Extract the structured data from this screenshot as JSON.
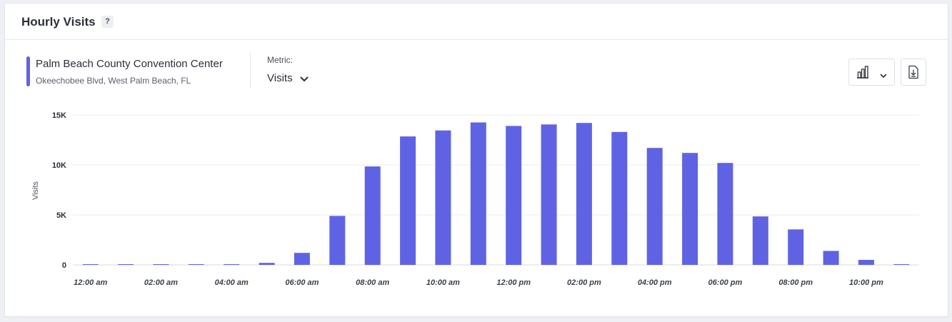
{
  "card": {
    "title": "Hourly Visits",
    "help": "?"
  },
  "venue": {
    "name": "Palm Beach County Convention Center",
    "address": "Okeechobee Blvd, West Palm Beach, FL",
    "color": "#5f63e3"
  },
  "metric": {
    "label": "Metric:",
    "value": "Visits"
  },
  "toolbar": {
    "chart_type_icon": "bar-chart-icon",
    "download_icon": "download-file-icon"
  },
  "chart_data": {
    "type": "bar",
    "ylabel": "Visits",
    "ylim": [
      0,
      15000
    ],
    "yticks": [
      0,
      5000,
      10000,
      15000
    ],
    "ytick_labels": [
      "0",
      "5K",
      "10K",
      "15K"
    ],
    "grid": true,
    "bar_color": "#5f63e3",
    "categories": [
      "12:00 am",
      "01:00 am",
      "02:00 am",
      "03:00 am",
      "04:00 am",
      "05:00 am",
      "06:00 am",
      "07:00 am",
      "08:00 am",
      "09:00 am",
      "10:00 am",
      "11:00 am",
      "12:00 pm",
      "01:00 pm",
      "02:00 pm",
      "03:00 pm",
      "04:00 pm",
      "05:00 pm",
      "06:00 pm",
      "07:00 pm",
      "08:00 pm",
      "09:00 pm",
      "10:00 pm",
      "11:00 pm"
    ],
    "xtick_labels": [
      "12:00 am",
      "02:00 am",
      "04:00 am",
      "06:00 am",
      "08:00 am",
      "10:00 am",
      "12:00 pm",
      "02:00 pm",
      "04:00 pm",
      "06:00 pm",
      "08:00 pm",
      "10:00 pm"
    ],
    "values": [
      30,
      20,
      25,
      20,
      25,
      200,
      1200,
      4900,
      9850,
      12850,
      13450,
      14250,
      13900,
      14050,
      14200,
      13300,
      11700,
      11200,
      10200,
      4850,
      3550,
      1400,
      500,
      40
    ]
  }
}
